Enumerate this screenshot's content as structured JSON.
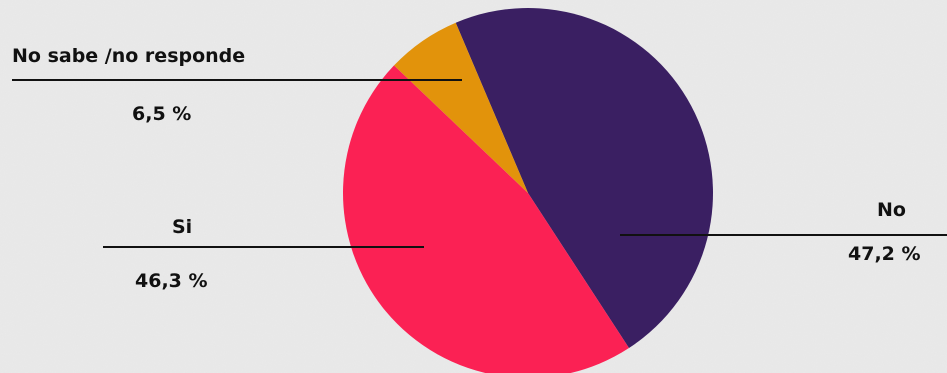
{
  "chart_data": {
    "type": "pie",
    "title": "",
    "slices": [
      {
        "label": "No",
        "value": 47.2,
        "value_label": "47,2 %",
        "color": "#3a1f62"
      },
      {
        "label": "Si",
        "value": 46.3,
        "value_label": "46,3 %",
        "color": "#fb2154"
      },
      {
        "label": "No sabe /no responde",
        "value": 6.5,
        "value_label": "6,5 %",
        "color": "#e2930b"
      }
    ],
    "legend": "none",
    "label_style": "callout lines"
  },
  "colors": {
    "background": "#e9e9e9",
    "leader_line": "#111111",
    "text": "#111111"
  }
}
